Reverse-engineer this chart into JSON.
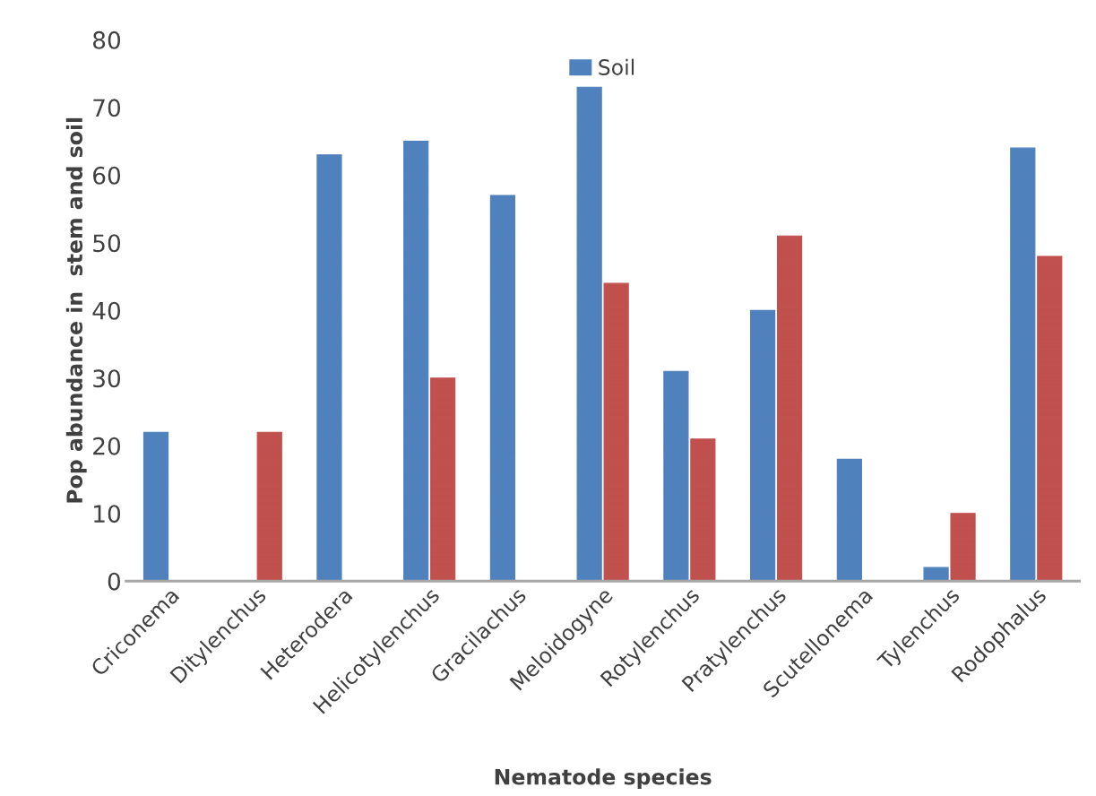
{
  "chart_data": {
    "type": "bar",
    "xlabel": "Nematode species",
    "ylabel": "Pop abundance in  stem and soil",
    "categories": [
      "Criconema",
      "Ditylenchus",
      "Heterodera",
      "Helicotylenchus",
      "Gracilachus",
      "Meloidogyne",
      "Rotylenchus",
      "Pratylenchus",
      "Scutellonema",
      "Tylenchus",
      "Rodophalus"
    ],
    "series": [
      {
        "name": "Soil",
        "color": "#4f81bd",
        "values": [
          22,
          null,
          63,
          65,
          57,
          73,
          31,
          40,
          18,
          2,
          64
        ]
      },
      {
        "color": "#c0504d",
        "values": [
          null,
          22,
          null,
          30,
          null,
          44,
          21,
          51,
          null,
          10,
          48
        ]
      }
    ],
    "ylim": [
      0,
      80
    ],
    "yticks": [
      0,
      10,
      20,
      30,
      40,
      50,
      60,
      70,
      80
    ],
    "grid": false,
    "legend": "top"
  }
}
